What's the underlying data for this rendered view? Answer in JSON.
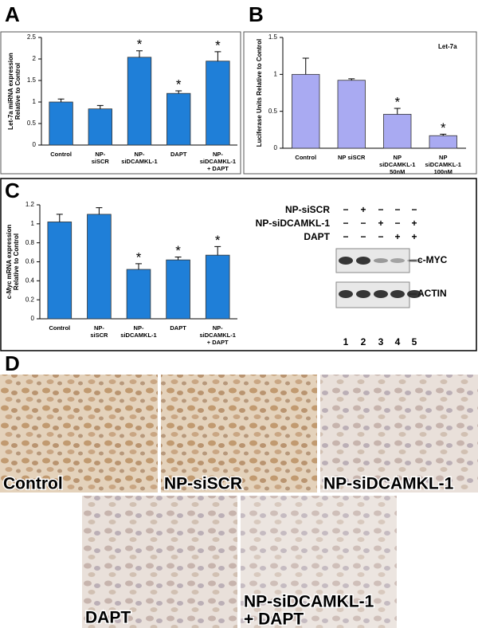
{
  "panel_labels": [
    "A",
    "B",
    "C",
    "D"
  ],
  "chart_data": [
    {
      "type": "bar",
      "ylabel": [
        "Let-7a miRNA expression",
        "Relative to Control"
      ],
      "categories": [
        [
          "Control"
        ],
        [
          "NP-",
          "siSCR"
        ],
        [
          "NP-",
          "siDCAMKL-1"
        ],
        [
          "DAPT"
        ],
        [
          "NP-",
          "siDCAMKL-1",
          "+ DAPT"
        ]
      ],
      "values": [
        1.0,
        0.84,
        2.04,
        1.2,
        1.95
      ],
      "errors": [
        0.07,
        0.08,
        0.15,
        0.06,
        0.22
      ],
      "significance": [
        null,
        null,
        "*",
        "*",
        "*"
      ],
      "color": "#1f7fd8",
      "ylim": [
        0,
        2.5
      ],
      "yticks": [
        0,
        0.5,
        1,
        1.5,
        2,
        2.5
      ]
    },
    {
      "type": "bar",
      "ylabel": [
        "Luciferase Units Relative to Control"
      ],
      "annotation": "Let-7a",
      "categories": [
        [
          "Control"
        ],
        [
          "NP siSCR"
        ],
        [
          "NP",
          "siDCAMKL-1",
          "50nM"
        ],
        [
          "NP",
          "siDCAMKL-1",
          "100nM"
        ]
      ],
      "values": [
        1.0,
        0.92,
        0.46,
        0.17
      ],
      "errors": [
        0.22,
        0.02,
        0.08,
        0.02
      ],
      "significance": [
        null,
        null,
        "*",
        "*"
      ],
      "color": "#a9aaf2",
      "ylim": [
        0,
        1.5
      ],
      "yticks": [
        0,
        0.5,
        1,
        1.5
      ]
    },
    {
      "type": "bar",
      "ylabel": [
        "c-Myc mRNA expression",
        "Relative to Control"
      ],
      "categories": [
        [
          "Control"
        ],
        [
          "NP-",
          "siSCR"
        ],
        [
          "NP-",
          "siDCAMKL-1"
        ],
        [
          "DAPT"
        ],
        [
          "NP-",
          "siDCAMKL-1",
          "+ DAPT"
        ]
      ],
      "values": [
        1.02,
        1.1,
        0.52,
        0.62,
        0.67
      ],
      "errors": [
        0.08,
        0.07,
        0.06,
        0.03,
        0.09
      ],
      "significance": [
        null,
        null,
        "*",
        "*",
        "*"
      ],
      "color": "#1f7fd8",
      "ylim": [
        0,
        1.2
      ],
      "yticks": [
        0,
        0.2,
        0.4,
        0.6,
        0.8,
        1,
        1.2
      ]
    }
  ],
  "blot": {
    "rows": [
      {
        "label": "NP-siSCR",
        "signs": [
          "−",
          "+",
          "−",
          "−",
          "−"
        ]
      },
      {
        "label": "NP-siDCAMKL-1",
        "signs": [
          "−",
          "−",
          "+",
          "−",
          "+"
        ]
      },
      {
        "label": "DAPT",
        "signs": [
          "−",
          "−",
          "−",
          "+",
          "+"
        ]
      }
    ],
    "bands": [
      "c-MYC",
      "ACTIN"
    ],
    "lanes": [
      1,
      2,
      3,
      4,
      5
    ]
  },
  "images": [
    [
      "Control"
    ],
    [
      "NP-siSCR"
    ],
    [
      "NP-siDCAMKL-1"
    ],
    [
      "DAPT"
    ],
    [
      "NP-siDCAMKL-1",
      "+ DAPT"
    ]
  ]
}
